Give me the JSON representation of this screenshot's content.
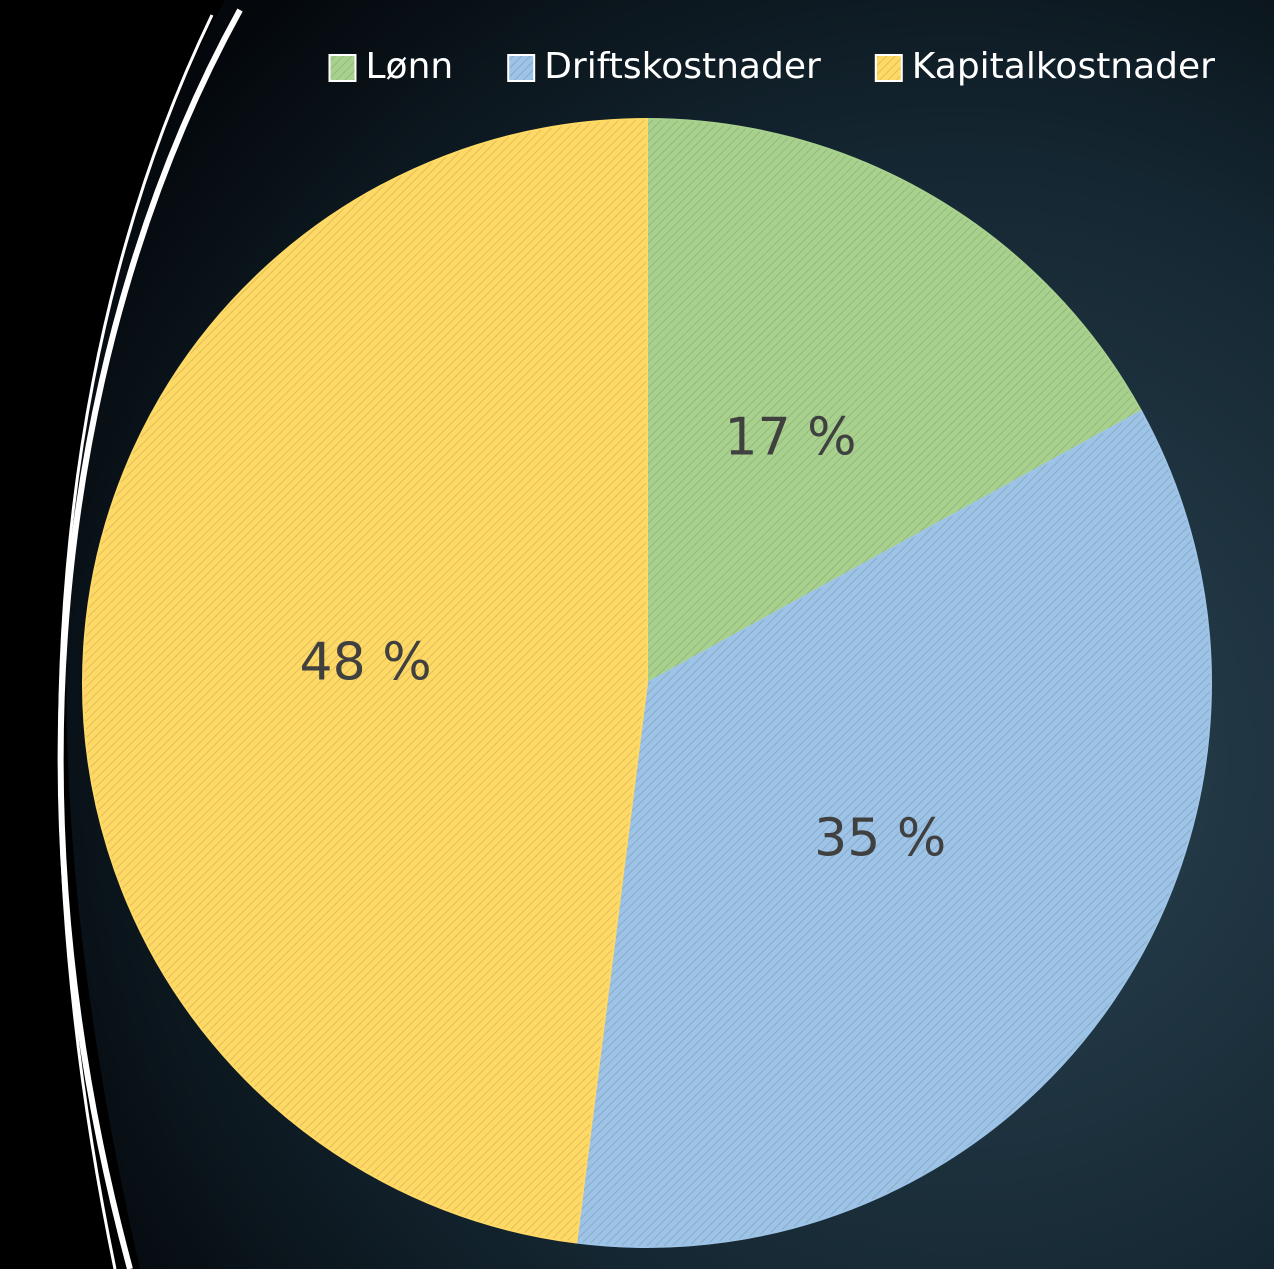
{
  "chart_data": {
    "type": "pie",
    "categories": [
      "Lønn",
      "Driftskostnader",
      "Kapitalkostnader"
    ],
    "values": [
      17,
      35,
      48
    ],
    "value_labels": [
      "17 %",
      "35 %",
      "48 %"
    ],
    "colors": [
      "#a9d18e",
      "#9dc3e6",
      "#ffd966"
    ],
    "legend": "top-right"
  }
}
